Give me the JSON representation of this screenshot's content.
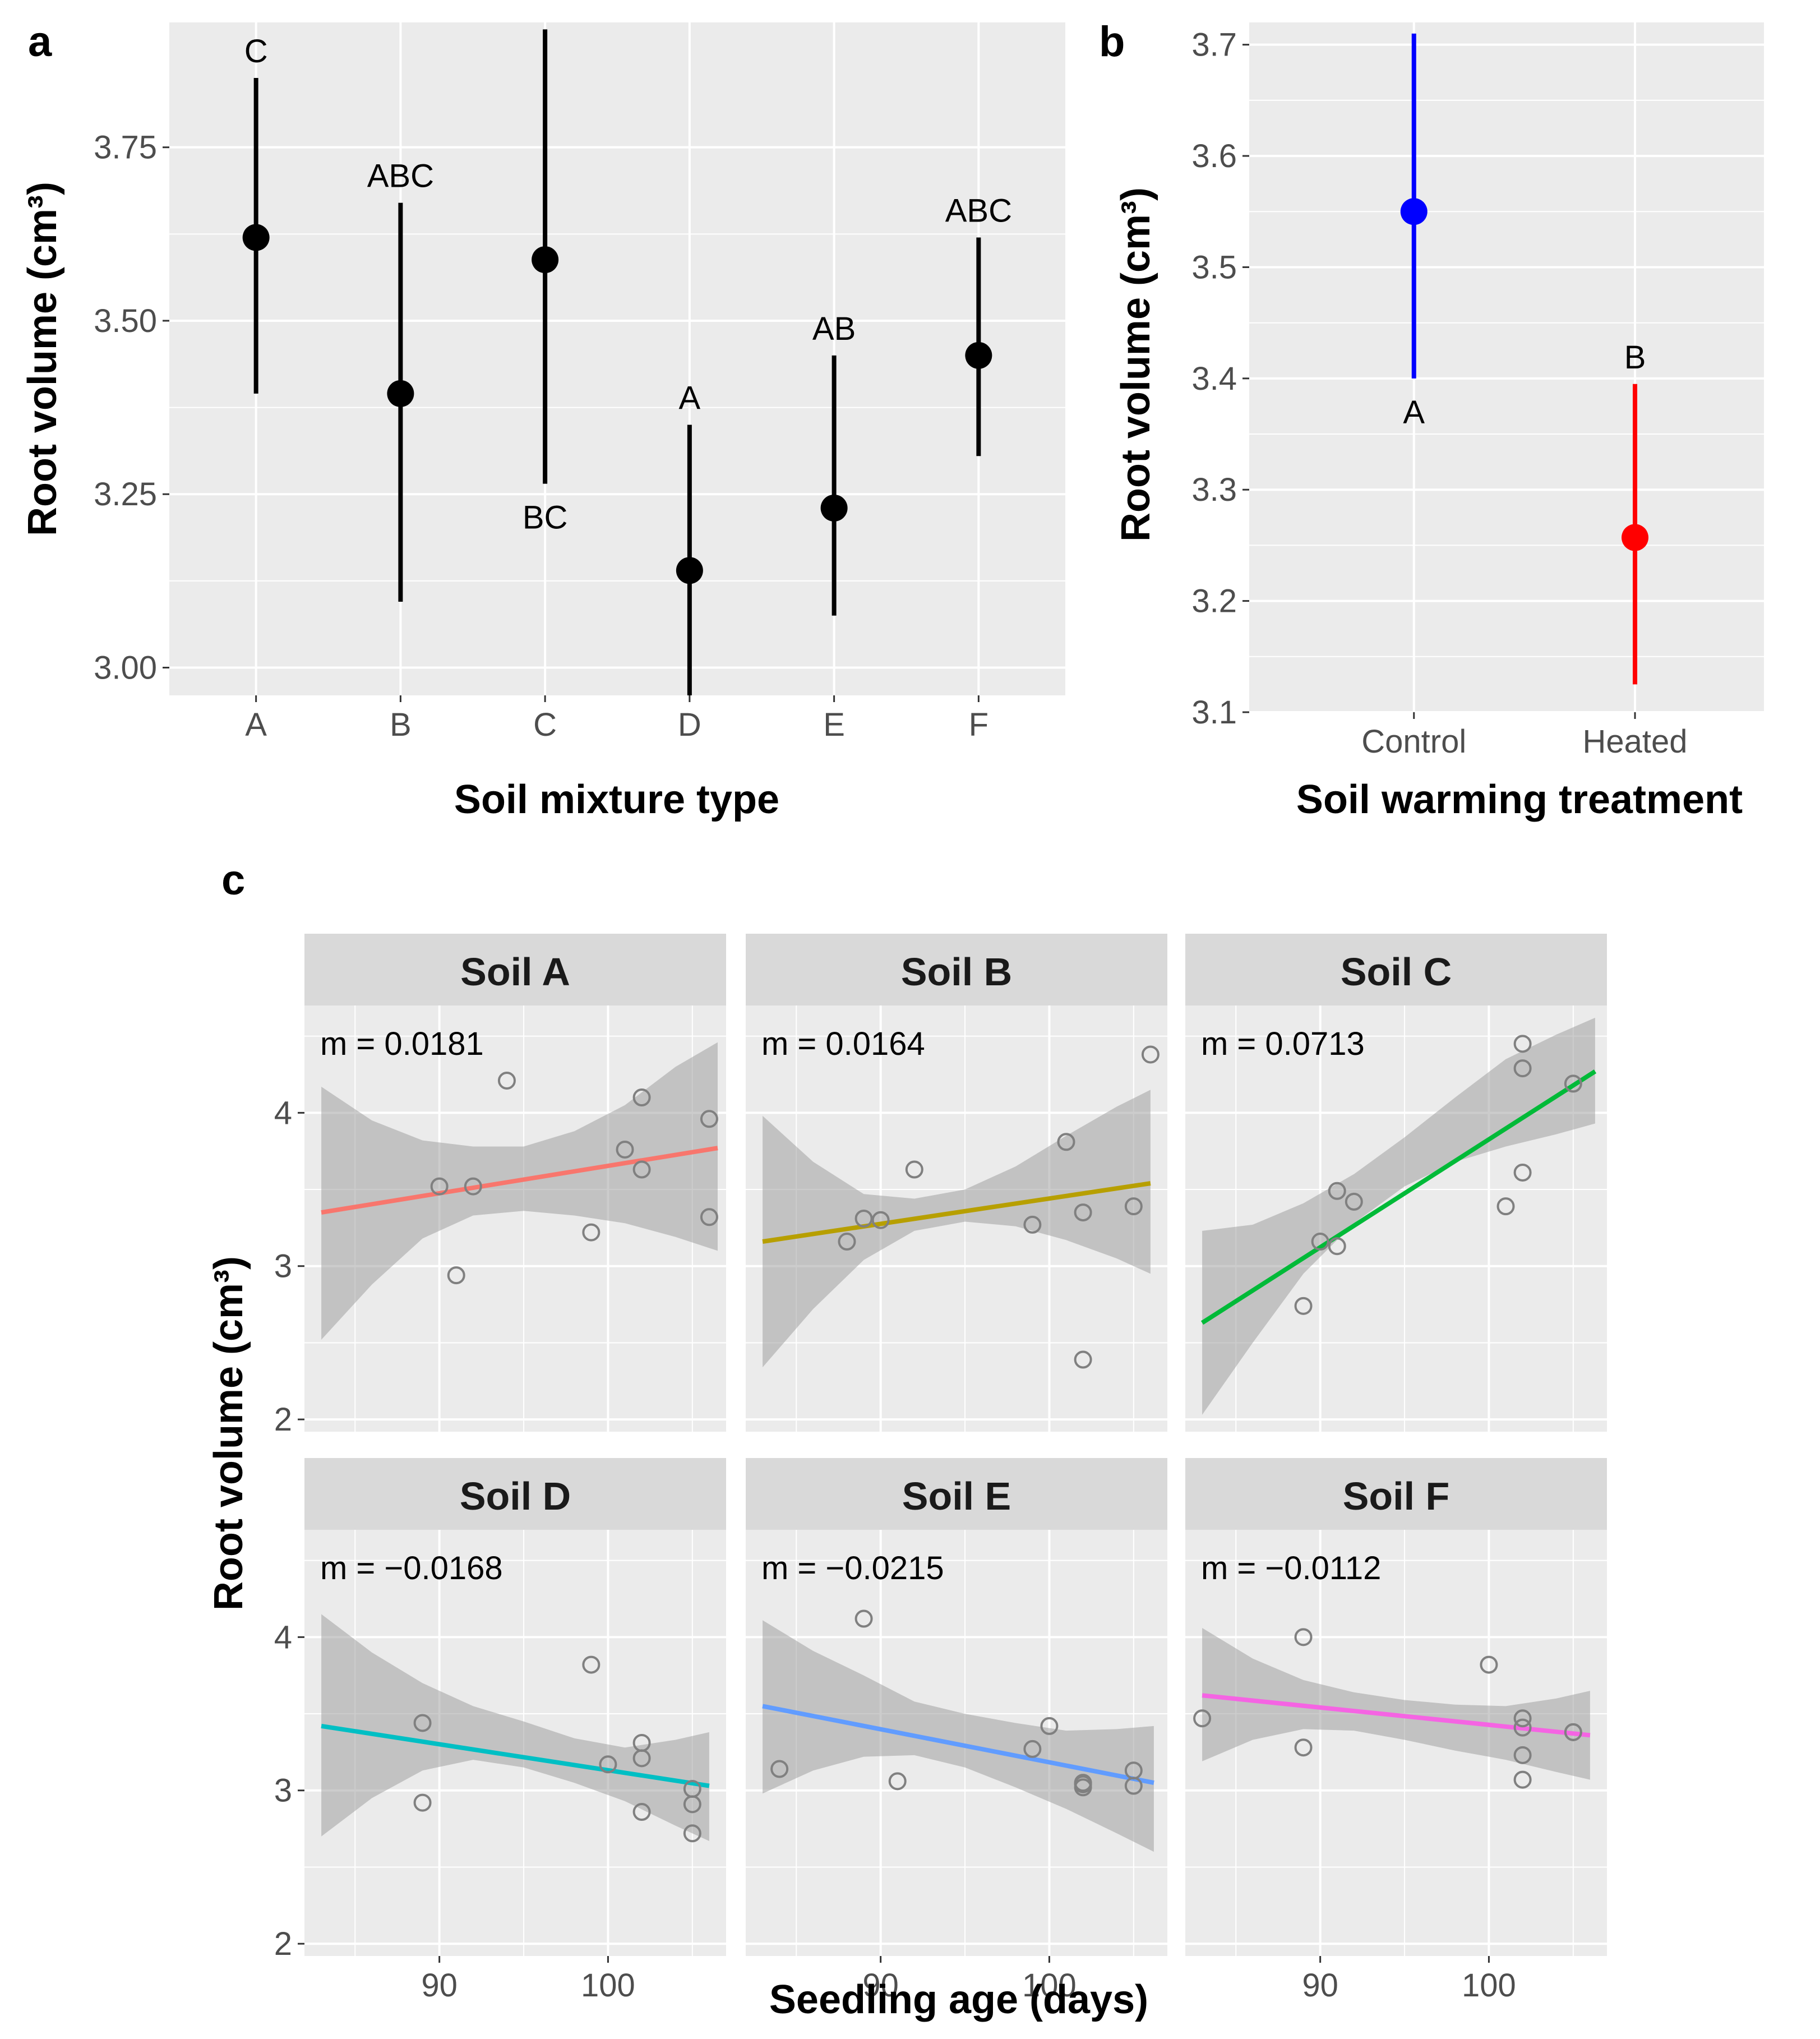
{
  "figure": {
    "panel_labels": [
      "a",
      "b",
      "c"
    ]
  },
  "chart_data": [
    {
      "id": "a",
      "type": "errorbar",
      "xlabel": "Soil mixture type",
      "ylabel": "Root volume (cm³)",
      "ylim": [
        2.96,
        3.93
      ],
      "yticks": [
        3.0,
        3.25,
        3.5,
        3.75
      ],
      "ytick_labels": [
        "3.00",
        "3.25",
        "3.50",
        "3.75"
      ],
      "categories": [
        "A",
        "B",
        "C",
        "D",
        "E",
        "F"
      ],
      "means": [
        3.62,
        3.395,
        3.588,
        3.14,
        3.23,
        3.45
      ],
      "lower": [
        3.395,
        3.095,
        3.265,
        2.96,
        3.075,
        3.305
      ],
      "upper": [
        3.85,
        3.67,
        3.92,
        3.35,
        3.45,
        3.62
      ],
      "letters": [
        "C",
        "ABC",
        "BC",
        "A",
        "AB",
        "ABC"
      ],
      "letter_position": [
        "above",
        "above",
        "below",
        "above",
        "above",
        "above"
      ],
      "color": "#000000"
    },
    {
      "id": "b",
      "type": "errorbar",
      "xlabel": "Soil warming treatment",
      "ylabel": "Root volume (cm³)",
      "ylim": [
        3.1,
        3.72
      ],
      "yticks": [
        3.1,
        3.2,
        3.3,
        3.4,
        3.5,
        3.6,
        3.7
      ],
      "ytick_labels": [
        "3.1",
        "3.2",
        "3.3",
        "3.4",
        "3.5",
        "3.6",
        "3.7"
      ],
      "categories": [
        "Control",
        "Heated"
      ],
      "means": [
        3.55,
        3.257
      ],
      "lower": [
        3.4,
        3.125
      ],
      "upper": [
        3.71,
        3.395
      ],
      "letters": [
        "A",
        "B"
      ],
      "letter_position": [
        "below",
        "above"
      ],
      "colors": [
        "#0000ff",
        "#ff0000"
      ]
    },
    {
      "id": "c",
      "type": "scatter",
      "xlabel": "Seedling age (days)",
      "ylabel": "Root volume (cm³)",
      "xlim": [
        82,
        107
      ],
      "ylim": [
        1.92,
        4.7
      ],
      "xticks": [
        90,
        100
      ],
      "xtick_labels": [
        "90",
        "100"
      ],
      "yticks": [
        2,
        3,
        4
      ],
      "ytick_labels": [
        "2",
        "3",
        "4"
      ],
      "panels": [
        {
          "strip": "Soil A",
          "slope_label": "m = 0.0181",
          "color": "#f8766d",
          "fit": {
            "x": [
              83,
              106.5
            ],
            "y": [
              3.35,
              3.77
            ]
          },
          "ribbon": {
            "x": [
              83,
              86,
              89,
              92,
              95,
              98,
              101,
              104,
              106.5
            ],
            "lo": [
              2.52,
              2.88,
              3.18,
              3.33,
              3.36,
              3.33,
              3.28,
              3.19,
              3.1
            ],
            "hi": [
              4.17,
              3.95,
              3.82,
              3.78,
              3.78,
              3.88,
              4.05,
              4.3,
              4.46
            ]
          },
          "points": {
            "x": [
              90,
              91,
              92,
              94,
              99,
              101,
              102,
              102,
              106,
              106
            ],
            "y": [
              3.52,
              2.94,
              3.52,
              4.21,
              3.22,
              3.76,
              4.1,
              3.63,
              3.96,
              3.32
            ]
          }
        },
        {
          "strip": "Soil B",
          "slope_label": "m = 0.0164",
          "color": "#b79f00",
          "fit": {
            "x": [
              83,
              106
            ],
            "y": [
              3.16,
              3.54
            ]
          },
          "ribbon": {
            "x": [
              83,
              86,
              89,
              92,
              95,
              98,
              101,
              104,
              106
            ],
            "lo": [
              2.34,
              2.72,
              3.04,
              3.23,
              3.29,
              3.26,
              3.17,
              3.05,
              2.95
            ],
            "hi": [
              3.98,
              3.68,
              3.47,
              3.44,
              3.5,
              3.65,
              3.85,
              4.04,
              4.15
            ]
          },
          "points": {
            "x": [
              88,
              89,
              90,
              92,
              99,
              101,
              102,
              102,
              105,
              106
            ],
            "y": [
              3.16,
              3.31,
              3.3,
              3.63,
              3.27,
              3.81,
              3.35,
              2.39,
              3.39,
              4.38
            ]
          }
        },
        {
          "strip": "Soil C",
          "slope_label": "m = 0.0713",
          "color": "#00ba38",
          "fit": {
            "x": [
              83,
              106.3
            ],
            "y": [
              2.63,
              4.27
            ]
          },
          "ribbon": {
            "x": [
              83,
              86,
              89,
              92,
              95,
              98,
              101,
              104,
              106.3
            ],
            "lo": [
              2.03,
              2.5,
              2.95,
              3.28,
              3.52,
              3.68,
              3.78,
              3.86,
              3.93
            ],
            "hi": [
              3.23,
              3.27,
              3.41,
              3.6,
              3.84,
              4.1,
              4.35,
              4.51,
              4.62
            ]
          },
          "points": {
            "x": [
              89,
              90,
              91,
              91,
              92,
              101,
              102,
              102,
              102,
              105
            ],
            "y": [
              2.74,
              3.16,
              3.49,
              3.13,
              3.42,
              3.39,
              4.29,
              4.45,
              3.61,
              4.19
            ]
          }
        },
        {
          "strip": "Soil D",
          "slope_label": "m = −0.0168",
          "color": "#00bfc4",
          "fit": {
            "x": [
              83,
              106
            ],
            "y": [
              3.42,
              3.03
            ]
          },
          "ribbon": {
            "x": [
              83,
              86,
              89,
              92,
              95,
              98,
              101,
              104,
              106
            ],
            "lo": [
              2.7,
              2.95,
              3.13,
              3.2,
              3.15,
              3.05,
              2.93,
              2.77,
              2.67
            ],
            "hi": [
              4.15,
              3.9,
              3.7,
              3.55,
              3.45,
              3.34,
              3.28,
              3.33,
              3.38
            ]
          },
          "points": {
            "x": [
              89,
              89,
              99,
              100,
              102,
              102,
              102,
              105,
              105,
              105
            ],
            "y": [
              3.44,
              2.92,
              3.82,
              3.17,
              3.31,
              3.21,
              2.86,
              3.01,
              2.91,
              2.72
            ]
          }
        },
        {
          "strip": "Soil E",
          "slope_label": "m = −0.0215",
          "color": "#619cff",
          "fit": {
            "x": [
              83,
              106.2
            ],
            "y": [
              3.55,
              3.05
            ]
          },
          "ribbon": {
            "x": [
              83,
              86,
              89,
              92,
              95,
              98,
              101,
              104,
              106.2
            ],
            "lo": [
              2.98,
              3.13,
              3.22,
              3.23,
              3.15,
              3.02,
              2.88,
              2.72,
              2.6
            ],
            "hi": [
              4.11,
              3.91,
              3.75,
              3.58,
              3.5,
              3.44,
              3.39,
              3.4,
              3.42
            ]
          },
          "points": {
            "x": [
              84,
              89,
              91,
              99,
              100,
              102,
              102,
              102,
              105,
              105
            ],
            "y": [
              3.14,
              4.12,
              3.06,
              3.27,
              3.42,
              3.04,
              3.02,
              3.05,
              3.13,
              3.03
            ]
          }
        },
        {
          "strip": "Soil F",
          "slope_label": "m = −0.0112",
          "color": "#f564e3",
          "fit": {
            "x": [
              83,
              106
            ],
            "y": [
              3.62,
              3.36
            ]
          },
          "ribbon": {
            "x": [
              83,
              86,
              89,
              92,
              95,
              98,
              101,
              104,
              106
            ],
            "lo": [
              3.19,
              3.33,
              3.4,
              3.39,
              3.33,
              3.26,
              3.2,
              3.12,
              3.07
            ],
            "hi": [
              4.06,
              3.86,
              3.72,
              3.64,
              3.59,
              3.56,
              3.55,
              3.6,
              3.65
            ]
          },
          "points": {
            "x": [
              83,
              89,
              89,
              100,
              102,
              102,
              102,
              102,
              105,
              105
            ],
            "y": [
              3.47,
              4.0,
              3.28,
              3.82,
              3.41,
              3.47,
              3.23,
              3.07,
              3.38,
              3.38
            ]
          }
        }
      ]
    }
  ]
}
